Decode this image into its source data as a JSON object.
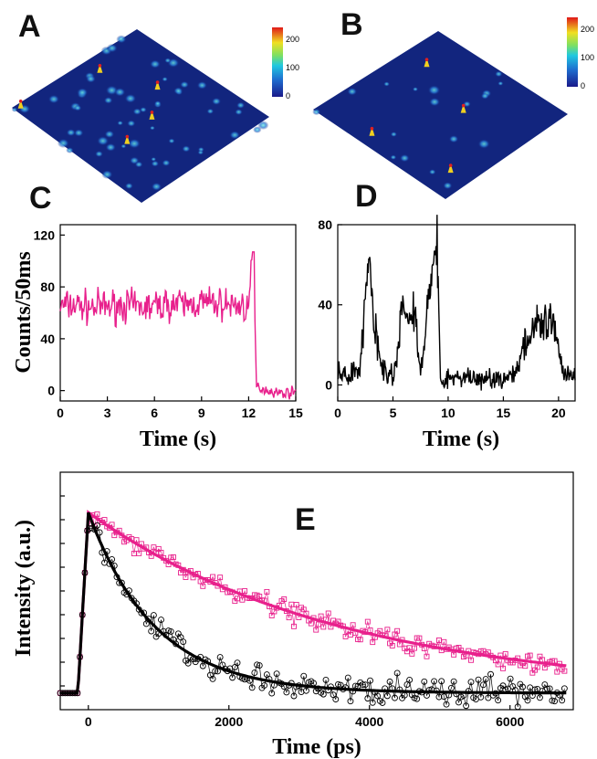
{
  "panels": {
    "a": {
      "letter": "A"
    },
    "b": {
      "letter": "B"
    },
    "c": {
      "letter": "C"
    },
    "d": {
      "letter": "D"
    },
    "e": {
      "letter": "E"
    }
  },
  "colorbars": [
    {
      "ticks": [
        "200",
        "100",
        "0"
      ]
    },
    {
      "ticks": [
        "200",
        "100",
        "0"
      ]
    }
  ],
  "colors": {
    "magenta": "#e8208c",
    "black": "#000000",
    "surface": "#10207a"
  },
  "chart_data": [
    {
      "panel": "C",
      "type": "line",
      "xlabel": "Time (s)",
      "ylabel": "Counts/50ms",
      "xlim": [
        0,
        15
      ],
      "ylim": [
        -8,
        128
      ],
      "xticks": [
        "0",
        "3",
        "6",
        "9",
        "12",
        "15"
      ],
      "yticks": [
        "0",
        "40",
        "80",
        "120"
      ],
      "series": [
        {
          "color": "#e8208c",
          "x": [
            0,
            1,
            2,
            3,
            4,
            5,
            6,
            7,
            8,
            9,
            10,
            11,
            12,
            12.3,
            12.5,
            13,
            14,
            15
          ],
          "values": [
            65,
            66,
            64,
            65,
            66,
            64,
            65,
            67,
            66,
            68,
            67,
            66,
            65,
            107,
            3,
            1,
            -2,
            -1
          ]
        }
      ]
    },
    {
      "panel": "D",
      "type": "line",
      "xlabel": "Time (s)",
      "ylabel": "",
      "xlim": [
        0,
        21.5
      ],
      "ylim": [
        -8,
        80
      ],
      "xticks": [
        "0",
        "5",
        "10",
        "15",
        "20"
      ],
      "yticks": [
        "0",
        "40",
        "80"
      ],
      "series": [
        {
          "color": "#000000",
          "x": [
            0,
            1,
            2,
            2.8,
            3.3,
            4,
            5,
            6,
            7,
            7.5,
            8.5,
            9,
            9.3,
            10,
            12,
            14,
            16,
            17.5,
            18.5,
            19.5,
            20.5,
            21.5
          ],
          "values": [
            6,
            5,
            7,
            65,
            30,
            6,
            5,
            40,
            35,
            5,
            58,
            72,
            2,
            3,
            4,
            3,
            4,
            28,
            35,
            30,
            5,
            4
          ]
        }
      ]
    },
    {
      "panel": "E",
      "type": "scatter",
      "xlabel": "Time (ps)",
      "ylabel": "Intensity (a.u.)",
      "xlim": [
        -400,
        6900
      ],
      "ylim": [
        0,
        1.0
      ],
      "xticks": [
        "0",
        "2000",
        "4000",
        "6000"
      ],
      "series": [
        {
          "color": "#e8208c",
          "marker": "square",
          "fit_tau_ps": 3600,
          "x": [
            0,
            500,
            1000,
            1500,
            2000,
            2500,
            3000,
            3500,
            4000,
            4500,
            5000,
            5500,
            6000,
            6500
          ],
          "values": [
            0.83,
            0.73,
            0.64,
            0.56,
            0.48,
            0.42,
            0.37,
            0.32,
            0.28,
            0.24,
            0.21,
            0.18,
            0.16,
            0.13
          ]
        },
        {
          "color": "#000000",
          "marker": "circle",
          "fit_tau_ps": 950,
          "x": [
            0,
            500,
            1000,
            1500,
            2000,
            2500,
            3000,
            3500,
            4000,
            4500,
            5000,
            5500,
            6000,
            6500
          ],
          "values": [
            0.83,
            0.55,
            0.4,
            0.3,
            0.22,
            0.18,
            0.14,
            0.12,
            0.1,
            0.09,
            0.08,
            0.08,
            0.07,
            0.07
          ]
        }
      ]
    }
  ]
}
